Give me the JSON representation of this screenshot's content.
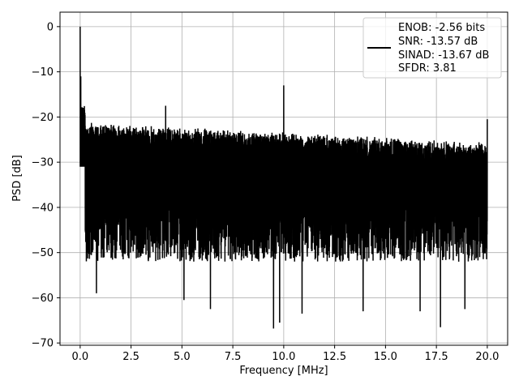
{
  "chart_data": {
    "type": "line",
    "title": "",
    "xlabel": "Frequency [MHz]",
    "ylabel": "PSD [dB]",
    "xlim": [
      -0.99,
      21.0
    ],
    "ylim": [
      -70.5,
      3.2
    ],
    "xticks": [
      0.0,
      2.5,
      5.0,
      7.5,
      10.0,
      12.5,
      15.0,
      17.5,
      20.0
    ],
    "xtick_labels": [
      "0.0",
      "2.5",
      "5.0",
      "7.5",
      "10.0",
      "12.5",
      "15.0",
      "17.5",
      "20.0"
    ],
    "yticks": [
      0,
      -10,
      -20,
      -30,
      -40,
      -50,
      -60,
      -70
    ],
    "ytick_labels": [
      "0",
      "−10",
      "−20",
      "−30",
      "−40",
      "−50",
      "−60",
      "−70"
    ],
    "grid": true,
    "legend_position": "upper right",
    "series": [
      {
        "name": "",
        "color": "#000000",
        "description_of_shape": "noisy PSD: DC peak at 0 dB, noise floor between about -20 and -67 dB, spur near 10 MHz at about -13 dB",
        "peaks": [
          {
            "x": 0.0,
            "y": 0.0
          },
          {
            "x": 0.03,
            "y": -11.0
          },
          {
            "x": 0.08,
            "y": -18.0
          },
          {
            "x": 4.2,
            "y": -17.5
          },
          {
            "x": 10.0,
            "y": -13.0
          },
          {
            "x": 20.0,
            "y": -20.5
          }
        ],
        "deep_nulls": [
          {
            "x": 0.8,
            "y": -59.0
          },
          {
            "x": 5.1,
            "y": -60.5
          },
          {
            "x": 6.4,
            "y": -62.5
          },
          {
            "x": 9.5,
            "y": -66.8
          },
          {
            "x": 9.8,
            "y": -65.5
          },
          {
            "x": 10.9,
            "y": -63.5
          },
          {
            "x": 13.9,
            "y": -63.0
          },
          {
            "x": 16.7,
            "y": -63.0
          },
          {
            "x": 17.7,
            "y": -66.5
          },
          {
            "x": 18.9,
            "y": -62.5
          }
        ]
      }
    ],
    "legend_entries": [
      "ENOB: -2.56 bits",
      "SNR: -13.57 dB",
      "SINAD: -13.67 dB",
      "SFDR: 3.81"
    ]
  }
}
